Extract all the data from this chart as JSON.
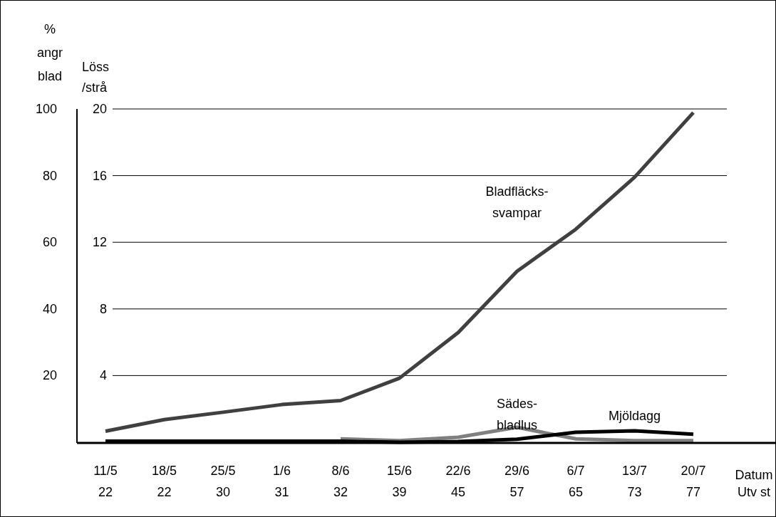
{
  "chart_data": {
    "type": "line",
    "categories": [
      "11/5\n22",
      "18/5\n22",
      "25/5\n30",
      "1/6\n31",
      "8/6\n32",
      "15/6\n39",
      "22/6\n45",
      "29/6\n57",
      "6/7\n65",
      "13/7\n73",
      "20/7\n77"
    ],
    "xlabel": "Datum\nUtv st",
    "ylabel": "%\nangr\nblad",
    "y2label": "Löss\n/strå",
    "ylim": [
      0,
      100
    ],
    "yticks": [
      20,
      40,
      60,
      80,
      100
    ],
    "y2lim": [
      0,
      20
    ],
    "y2ticks": [
      4,
      8,
      12,
      16,
      20
    ],
    "grid": "y",
    "legend": false,
    "marker": "none",
    "line_style": "solid",
    "series": [
      {
        "name": "Bladfläcks-\nsvampar",
        "color": "#404040",
        "values": [
          3.3,
          6.8,
          9.0,
          11.3,
          12.5,
          19.2,
          32.9,
          51.3,
          63.9,
          79.5,
          98.9
        ]
      },
      {
        "name": "Sädes-\nbladlus",
        "color": "#808080",
        "axis": "y2",
        "values": [
          null,
          null,
          null,
          null,
          0.2,
          0.1,
          0.3,
          0.9,
          0.2,
          0.1,
          0.1
        ]
      },
      {
        "name": "Mjöldagg",
        "color": "#000000",
        "values": [
          0.3,
          0.3,
          0.3,
          0.3,
          0.3,
          0,
          0.2,
          0.9,
          3.0,
          3.4,
          2.4
        ]
      }
    ]
  }
}
